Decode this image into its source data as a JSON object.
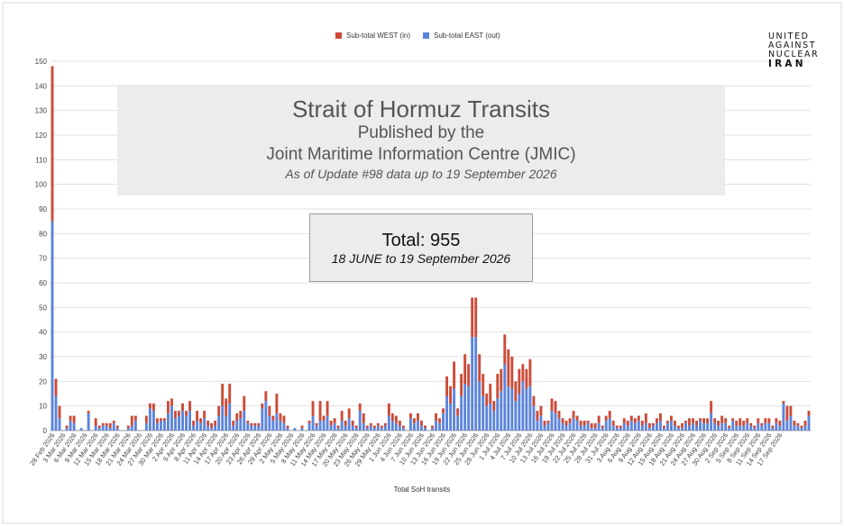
{
  "legend": {
    "west_label": "Sub-total WEST (in)",
    "east_label": "Sub-total EAST (out)"
  },
  "logo": {
    "line1": "UNITED",
    "line2": "AGAINST",
    "line3": "NUCLEAR",
    "line4": "IRAN"
  },
  "title_box": {
    "line1": "Strait of Hormuz Transits",
    "line2": "Published by the",
    "line3": "Joint Maritime Information Centre (JMIC)",
    "line4": "As of Update #98 data up to 19 September 2026"
  },
  "total_box": {
    "value": "Total: 955",
    "dates": "18 JUNE to 19 September 2026"
  },
  "colors": {
    "west": "#cc4b37",
    "east": "#5b84dd",
    "grid": "#e0e0e0",
    "axis_text": "#444444"
  },
  "chart_data": {
    "type": "bar",
    "stacked": true,
    "xlabel": "Total SoH transits",
    "ylabel": "",
    "ylim": [
      0,
      150
    ],
    "yticks": [
      0,
      10,
      20,
      30,
      40,
      50,
      60,
      70,
      80,
      90,
      100,
      110,
      120,
      130,
      140,
      150
    ],
    "grid": true,
    "legend_position": "top-center",
    "x_tick_labels": [
      "28 Feb 2026",
      "3 Mar 2026",
      "6 Mar 2026",
      "9 Mar 2026",
      "12 Mar 2026",
      "15 Mar 2026",
      "18 Mar 2026",
      "21 Mar 2026",
      "24 Mar 2026",
      "27 Mar 2026",
      "30 Mar 2026",
      "2 Apr 2026",
      "5 Apr 2026",
      "8 Apr 2026",
      "11 Apr 2026",
      "14 Apr 2026",
      "17 Apr 2026",
      "20 Apr 2026",
      "23 Apr 2026",
      "26 Apr 2026",
      "29 Apr 2026",
      "2 May 2026",
      "5 May 2026",
      "8 May 2026",
      "11 May 2026",
      "14 May 2026",
      "17 May 2026",
      "20 May 2026",
      "23 May 2026",
      "26 May 2026",
      "29 May 2026",
      "1 Jun 2026",
      "4 Jun 2026",
      "7 Jun 2026",
      "10 Jun 2026",
      "13 Jun 2026",
      "16 Jun 2026",
      "19 Jun 2026",
      "22 Jun 2026",
      "25 Jun 2026",
      "28 Jun 2026",
      "1 Jul 2026",
      "4 Jul 2026",
      "7 Jul 2026",
      "10 Jul 2026",
      "13 Jul 2026",
      "16 Jul 2026",
      "19 Jul 2026",
      "22 Jul 2026",
      "25 Jul 2026",
      "28 Jul 2026",
      "31 Jul 2026",
      "3 Aug 2026",
      "6 Aug 2026",
      "9 Aug 2026",
      "12 Aug 2026",
      "15 Aug 2026",
      "18 Aug 2026",
      "21 Aug 2026",
      "24 Aug 2026",
      "27 Aug 2026",
      "30 Aug 2026",
      "2 Sep 2026",
      "5 Sep 2026",
      "8 Sep 2026",
      "11 Sep 2026",
      "14 Sep 2026",
      "17 Sep 2026"
    ],
    "series": [
      {
        "name": "Sub-total EAST (out)",
        "values": [
          85,
          14,
          5,
          0,
          1,
          4,
          3,
          0,
          1,
          0,
          7,
          0,
          2,
          1,
          2,
          2,
          1,
          3,
          1,
          0,
          0,
          1,
          2,
          4,
          0,
          0,
          3,
          9,
          8,
          3,
          4,
          4,
          7,
          10,
          5,
          6,
          8,
          6,
          8,
          2,
          4,
          3,
          5,
          2,
          1,
          2,
          6,
          10,
          6,
          11,
          2,
          4,
          5,
          8,
          3,
          2,
          2,
          2,
          9,
          12,
          6,
          4,
          7,
          4,
          3,
          1,
          0,
          1,
          0,
          1,
          0,
          3,
          6,
          2,
          4,
          4,
          6,
          2,
          3,
          1,
          4,
          2,
          5,
          2,
          1,
          8,
          3,
          1,
          2,
          1,
          2,
          1,
          2,
          6,
          4,
          3,
          2,
          1,
          0,
          5,
          3,
          4,
          2,
          1,
          0,
          1,
          4,
          3,
          7,
          14,
          11,
          17,
          6,
          14,
          19,
          18,
          38,
          38,
          20,
          14,
          10,
          11,
          8,
          13,
          16,
          27,
          18,
          17,
          12,
          15,
          20,
          17,
          18,
          10,
          4,
          6,
          2,
          3,
          8,
          7,
          5,
          3,
          2,
          3,
          5,
          4,
          2,
          2,
          3,
          1,
          1,
          3,
          1,
          4,
          5,
          2,
          1,
          1,
          3,
          2,
          4,
          3,
          4,
          2,
          3,
          1,
          2,
          3,
          4,
          1,
          3,
          4,
          2,
          1,
          1,
          3,
          2,
          3,
          2,
          4,
          3,
          3,
          7,
          3,
          2,
          3,
          3,
          1,
          4,
          2,
          2,
          2,
          3,
          2,
          1,
          3,
          2,
          3,
          3,
          1,
          3,
          2,
          11,
          4,
          6,
          2,
          2,
          1,
          2,
          6
        ],
        "note_values_per_day": true
      },
      {
        "name": "Sub-total WEST (in)",
        "values": [
          63,
          7,
          5,
          0,
          1,
          2,
          3,
          0,
          0,
          0,
          1,
          0,
          3,
          1,
          1,
          1,
          2,
          1,
          1,
          0,
          0,
          1,
          4,
          2,
          0,
          0,
          3,
          2,
          3,
          2,
          1,
          1,
          5,
          3,
          3,
          2,
          3,
          2,
          4,
          2,
          4,
          2,
          3,
          2,
          2,
          2,
          4,
          9,
          7,
          8,
          2,
          3,
          3,
          6,
          1,
          1,
          1,
          1,
          2,
          4,
          4,
          2,
          8,
          3,
          3,
          1,
          0,
          0,
          0,
          1,
          0,
          1,
          6,
          1,
          8,
          2,
          6,
          2,
          2,
          1,
          4,
          2,
          4,
          2,
          1,
          3,
          4,
          1,
          1,
          1,
          1,
          1,
          1,
          5,
          3,
          3,
          2,
          1,
          0,
          2,
          2,
          3,
          2,
          1,
          0,
          1,
          3,
          2,
          2,
          8,
          7,
          11,
          3,
          9,
          12,
          9,
          16,
          16,
          11,
          9,
          5,
          8,
          4,
          10,
          9,
          12,
          15,
          13,
          8,
          10,
          7,
          8,
          11,
          4,
          4,
          4,
          2,
          1,
          5,
          5,
          3,
          2,
          2,
          2,
          3,
          2,
          2,
          2,
          1,
          2,
          2,
          3,
          1,
          2,
          3,
          2,
          1,
          1,
          2,
          2,
          2,
          2,
          2,
          2,
          4,
          2,
          1,
          2,
          3,
          1,
          1,
          2,
          2,
          1,
          2,
          1,
          3,
          2,
          2,
          1,
          2,
          2,
          5,
          2,
          2,
          3,
          2,
          1,
          1,
          2,
          3,
          2,
          2,
          1,
          1,
          2,
          1,
          2,
          2,
          1,
          2,
          2,
          1,
          6,
          4,
          2,
          1,
          1,
          2,
          2
        ]
      }
    ]
  },
  "x_axis_title": "Total SoH transits"
}
